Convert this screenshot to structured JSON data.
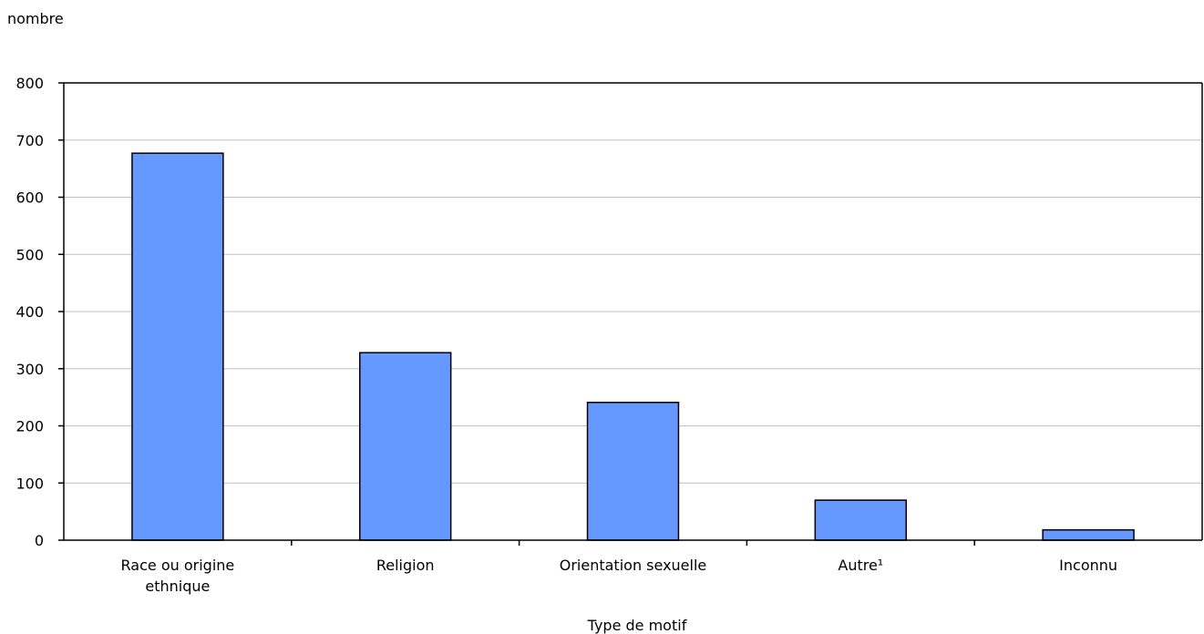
{
  "chart_data": {
    "type": "bar",
    "title": "",
    "ylabel": "nombre",
    "xlabel": "Type de motif",
    "ylim": [
      0,
      800
    ],
    "yticks": [
      0,
      100,
      200,
      300,
      400,
      500,
      600,
      700,
      800
    ],
    "grid": true,
    "categories": [
      [
        "Race ou origine",
        "ethnique"
      ],
      [
        "Religion"
      ],
      [
        "Orientation sexuelle"
      ],
      [
        "Autre¹"
      ],
      [
        "Inconnu"
      ]
    ],
    "values": [
      677,
      328,
      241,
      70,
      18
    ],
    "bar_color": "#6699ff"
  }
}
